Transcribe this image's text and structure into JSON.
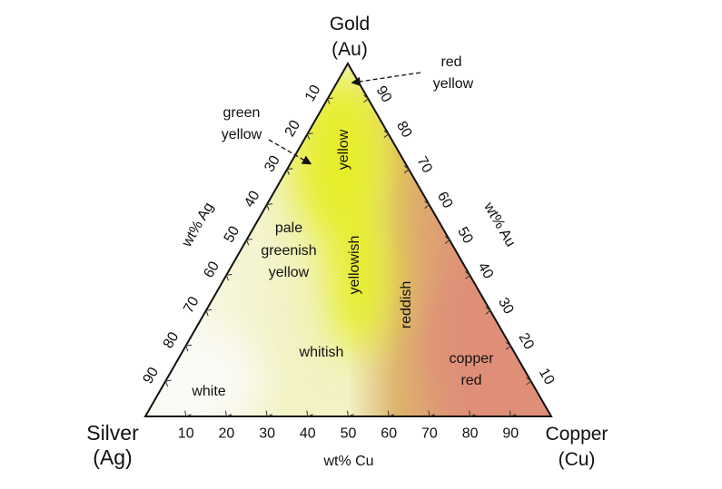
{
  "vertices": {
    "top": {
      "name": "Gold",
      "symbol": "(Au)"
    },
    "left": {
      "name": "Silver",
      "symbol": "(Ag)"
    },
    "right": {
      "name": "Copper",
      "symbol": "(Cu)"
    }
  },
  "axes": {
    "left": {
      "label": "wt% Ag",
      "ticks": [
        "10",
        "20",
        "30",
        "40",
        "50",
        "60",
        "70",
        "80",
        "90"
      ]
    },
    "right": {
      "label": "wt% Au",
      "ticks": [
        "90",
        "80",
        "70",
        "60",
        "50",
        "40",
        "30",
        "20",
        "10"
      ]
    },
    "bottom": {
      "label": "wt% Cu",
      "ticks": [
        "10",
        "20",
        "30",
        "40",
        "50",
        "60",
        "70",
        "80",
        "90"
      ]
    }
  },
  "regions": {
    "yellow": "yellow",
    "pale_greenish_yellow": [
      "pale",
      "greenish",
      "yellow"
    ],
    "yellowish": "yellowish",
    "reddish": "reddish",
    "whitish": "whitish",
    "white": "white",
    "copper_red": [
      "copper",
      "red"
    ]
  },
  "callouts": {
    "red_yellow": [
      "red",
      "yellow"
    ],
    "green_yellow": [
      "green",
      "yellow"
    ]
  },
  "colors": {
    "white": "#fbfaf6",
    "pale_yellow": "#f2f2c4",
    "yellow": "#e6ee2a",
    "orange": "#ddb46c",
    "salmon": "#df8f78"
  }
}
